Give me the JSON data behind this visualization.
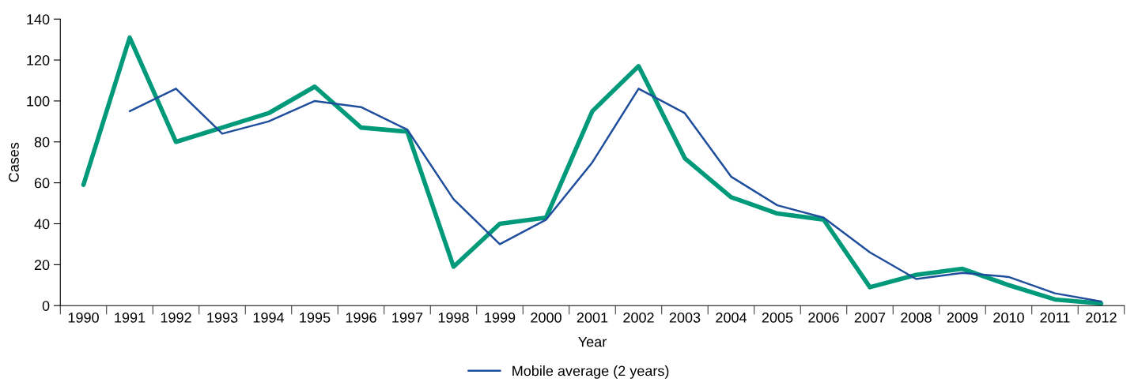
{
  "chart_data": {
    "type": "line",
    "xlabel": "Year",
    "ylabel": "Cases",
    "categories": [
      "1990",
      "1991",
      "1992",
      "1993",
      "1994",
      "1995",
      "1996",
      "1997",
      "1998",
      "1999",
      "2000",
      "2001",
      "2002",
      "2003",
      "2004",
      "2005",
      "2006",
      "2007",
      "2008",
      "2009",
      "2010",
      "2011",
      "2012"
    ],
    "series": [
      {
        "color": "#00997a",
        "values": [
          59,
          131,
          80,
          87,
          94,
          107,
          87,
          85,
          19,
          40,
          43,
          95,
          117,
          72,
          53,
          45,
          42,
          9,
          15,
          18,
          10,
          3,
          1
        ]
      },
      {
        "name": "Mobile average (2 years)",
        "color": "#1f4e9c",
        "values": [
          null,
          95,
          106,
          84,
          90,
          100,
          97,
          86,
          52,
          30,
          42,
          70,
          106,
          94,
          63,
          49,
          43,
          26,
          13,
          16,
          14,
          6,
          2
        ]
      }
    ],
    "ylim": [
      0,
      140
    ],
    "yticks": [
      0,
      20,
      40,
      60,
      80,
      100,
      120,
      140
    ],
    "grid": false,
    "legend": "bottom",
    "marker": "none",
    "line_style": "solid"
  }
}
